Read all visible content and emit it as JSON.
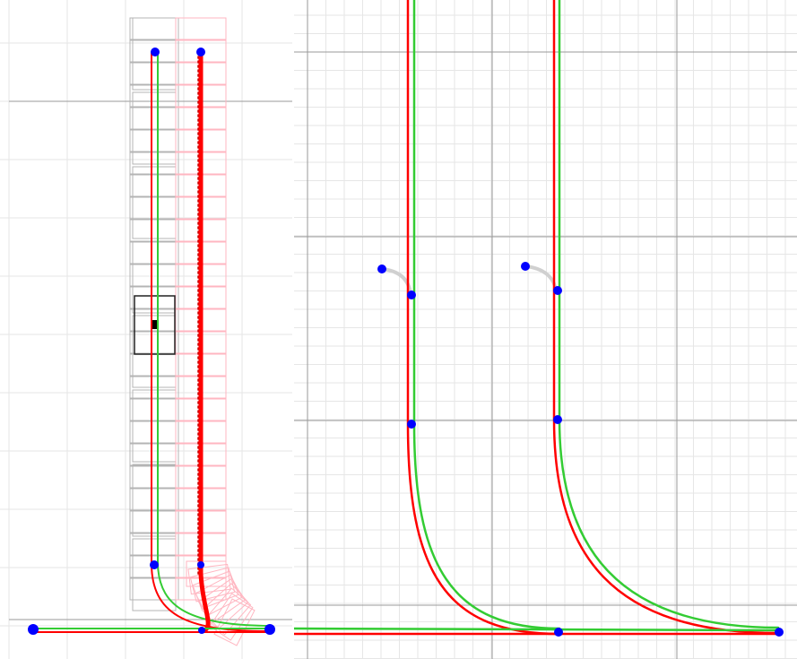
{
  "colors": {
    "background": "#ffffff",
    "grid_minor": "#e6e6e6",
    "grid_major": "#9a9a9a",
    "path_red": "#ff0000",
    "path_green": "#33cc33",
    "waypoint": "#0000ff",
    "footprint_gray": "#b4b4b4",
    "footprint_pink": "#ffb6c1",
    "vehicle_box": "#222222",
    "connector": "#d0d0d0"
  },
  "panels": [
    {
      "id": "overview",
      "grid": "on"
    },
    {
      "id": "zoomed-detail",
      "grid": "on"
    }
  ]
}
